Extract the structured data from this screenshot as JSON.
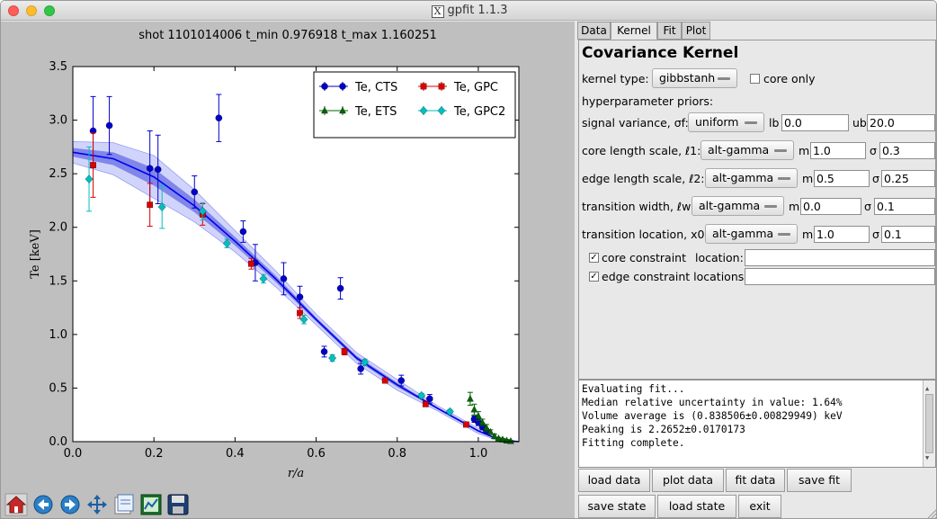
{
  "window": {
    "title": "gpfit 1.1.3",
    "x_glyph": "X"
  },
  "plot": {
    "title": "shot 1101014006 t_min 0.976918 t_max 1.160251"
  },
  "chart_data": {
    "type": "scatter",
    "title": "shot 1101014006 t_min 0.976918 t_max 1.160251",
    "xlabel": "r/a",
    "ylabel": "Te [keV]",
    "xlim": [
      0.0,
      1.1
    ],
    "ylim": [
      0.0,
      3.5
    ],
    "xticks": [
      "0.0",
      "0.2",
      "0.4",
      "0.6",
      "0.8",
      "1.0"
    ],
    "yticks": [
      "0.0",
      "0.5",
      "1.0",
      "1.5",
      "2.0",
      "2.5",
      "3.0",
      "3.5"
    ],
    "legend_position": "top-right",
    "legend": [
      {
        "label": "Te, CTS",
        "color": "#0000cc",
        "marker": "circle"
      },
      {
        "label": "Te, ETS",
        "color": "#006600",
        "marker": "triangle"
      },
      {
        "label": "Te, GPC",
        "color": "#dd0000",
        "marker": "square"
      },
      {
        "label": "Te, GPC2",
        "color": "#00bfbf",
        "marker": "diamond"
      }
    ],
    "series": [
      {
        "name": "Te, CTS",
        "color": "#0000cc",
        "marker": "circle",
        "points": [
          [
            0.05,
            2.9,
            0.32
          ],
          [
            0.09,
            2.95,
            0.27
          ],
          [
            0.19,
            2.55,
            0.35
          ],
          [
            0.21,
            2.54,
            0.32
          ],
          [
            0.3,
            2.33,
            0.15
          ],
          [
            0.36,
            3.02,
            0.22
          ],
          [
            0.42,
            1.96,
            0.1
          ],
          [
            0.45,
            1.67,
            0.17
          ],
          [
            0.52,
            1.52,
            0.15
          ],
          [
            0.56,
            1.35,
            0.1
          ],
          [
            0.62,
            0.84,
            0.05
          ],
          [
            0.66,
            1.43,
            0.1
          ],
          [
            0.71,
            0.68,
            0.05
          ],
          [
            0.81,
            0.57,
            0.05
          ],
          [
            0.88,
            0.4,
            0.04
          ],
          [
            0.99,
            0.21,
            0.03
          ],
          [
            1.0,
            0.18,
            0.03
          ],
          [
            1.01,
            0.14,
            0.03
          ],
          [
            1.02,
            0.1,
            0.02
          ]
        ]
      },
      {
        "name": "Te, ETS",
        "color": "#006600",
        "marker": "triangle",
        "points": [
          [
            0.98,
            0.4,
            0.06
          ],
          [
            0.99,
            0.3,
            0.05
          ],
          [
            1.0,
            0.24,
            0.04
          ],
          [
            1.01,
            0.18,
            0.03
          ],
          [
            1.02,
            0.13,
            0.03
          ],
          [
            1.03,
            0.09,
            0.02
          ],
          [
            1.04,
            0.05,
            0.02
          ],
          [
            1.05,
            0.03,
            0.01
          ],
          [
            1.06,
            0.02,
            0.01
          ],
          [
            1.07,
            0.01,
            0.01
          ],
          [
            1.08,
            0.005,
            0.005
          ]
        ]
      },
      {
        "name": "Te, GPC",
        "color": "#dd0000",
        "marker": "square",
        "points": [
          [
            0.05,
            2.58,
            0.3
          ],
          [
            0.19,
            2.21,
            0.2
          ],
          [
            0.32,
            2.12,
            0.1
          ],
          [
            0.44,
            1.66,
            0.05
          ],
          [
            0.56,
            1.2,
            0.05
          ],
          [
            0.67,
            0.84,
            0.03
          ],
          [
            0.77,
            0.57,
            0.02
          ],
          [
            0.87,
            0.35,
            0.02
          ],
          [
            0.97,
            0.16,
            0.02
          ]
        ]
      },
      {
        "name": "Te, GPC2",
        "color": "#00bfbf",
        "marker": "diamond",
        "points": [
          [
            0.04,
            2.45,
            0.3
          ],
          [
            0.22,
            2.19,
            0.2
          ],
          [
            0.32,
            2.15,
            0.08
          ],
          [
            0.38,
            1.85,
            0.04
          ],
          [
            0.47,
            1.52,
            0.04
          ],
          [
            0.57,
            1.14,
            0.04
          ],
          [
            0.64,
            0.78,
            0.03
          ],
          [
            0.72,
            0.74,
            0.03
          ],
          [
            0.86,
            0.43,
            0.02
          ],
          [
            0.93,
            0.28,
            0.02
          ]
        ]
      },
      {
        "name": "fit",
        "color": "#0000ee",
        "marker": "line",
        "points": [
          [
            0.0,
            2.7,
            0.04
          ],
          [
            0.1,
            2.64,
            0.06
          ],
          [
            0.2,
            2.47,
            0.08
          ],
          [
            0.3,
            2.2,
            0.06
          ],
          [
            0.4,
            1.87,
            0.04
          ],
          [
            0.5,
            1.52,
            0.03
          ],
          [
            0.6,
            1.14,
            0.02
          ],
          [
            0.7,
            0.78,
            0.02
          ],
          [
            0.8,
            0.53,
            0.02
          ],
          [
            0.9,
            0.31,
            0.01
          ],
          [
            1.0,
            0.1,
            0.01
          ],
          [
            1.05,
            0.02,
            0.005
          ],
          [
            1.1,
            0.0,
            0.0
          ]
        ]
      }
    ]
  },
  "tabs": [
    {
      "label": "Data",
      "active": false
    },
    {
      "label": "Kernel",
      "active": true
    },
    {
      "label": "Fit",
      "active": false
    },
    {
      "label": "Plot",
      "active": false
    }
  ],
  "kernel": {
    "title": "Covariance Kernel",
    "kernel_type_label": "kernel type:",
    "kernel_type_value": "gibbstanh",
    "core_only_label": "core only",
    "core_only_checked": false,
    "hyper_label": "hyperparameter priors:",
    "rows": [
      {
        "label": "signal variance, σf:",
        "prior": "uniform",
        "p1_label": "lb",
        "p1": "0.0",
        "p2_label": "ub",
        "p2": "20.0"
      },
      {
        "label": "core length scale, ℓ1:",
        "prior": "alt-gamma",
        "p1_label": "m",
        "p1": "1.0",
        "p2_label": "σ",
        "p2": "0.3"
      },
      {
        "label": "edge length scale, ℓ2:",
        "prior": "alt-gamma",
        "p1_label": "m",
        "p1": "0.5",
        "p2_label": "σ",
        "p2": "0.25"
      },
      {
        "label": "transition width, ℓw:",
        "prior": "alt-gamma",
        "p1_label": "m",
        "p1": "0.0",
        "p2_label": "σ",
        "p2": "0.1"
      },
      {
        "label": "transition location, x0:",
        "prior": "alt-gamma",
        "p1_label": "m",
        "p1": "1.0",
        "p2_label": "σ",
        "p2": "0.1"
      }
    ],
    "core_constraint_label": "core constraint",
    "core_constraint_checked": true,
    "core_location_label": "location:",
    "core_location_value": "",
    "edge_constraint_label": "edge constraint locations:",
    "edge_constraint_checked": true,
    "edge_location_value": ""
  },
  "log": {
    "lines": [
      "Evaluating fit...",
      "Median relative uncertainty in value: 1.64%",
      "Volume average is (0.838506±0.00829949) keV",
      "Peaking is 2.2652±0.0170173",
      "Fitting complete."
    ]
  },
  "buttons": {
    "load_data": "load data",
    "plot_data": "plot data",
    "fit_data": "fit data",
    "save_fit": "save fit",
    "save_state": "save state",
    "load_state": "load state",
    "exit": "exit"
  },
  "toolbar_icons": [
    "home-icon",
    "back-arrow-icon",
    "forward-arrow-icon",
    "pan-icon",
    "configure-icon",
    "zoom-icon",
    "save-icon"
  ]
}
